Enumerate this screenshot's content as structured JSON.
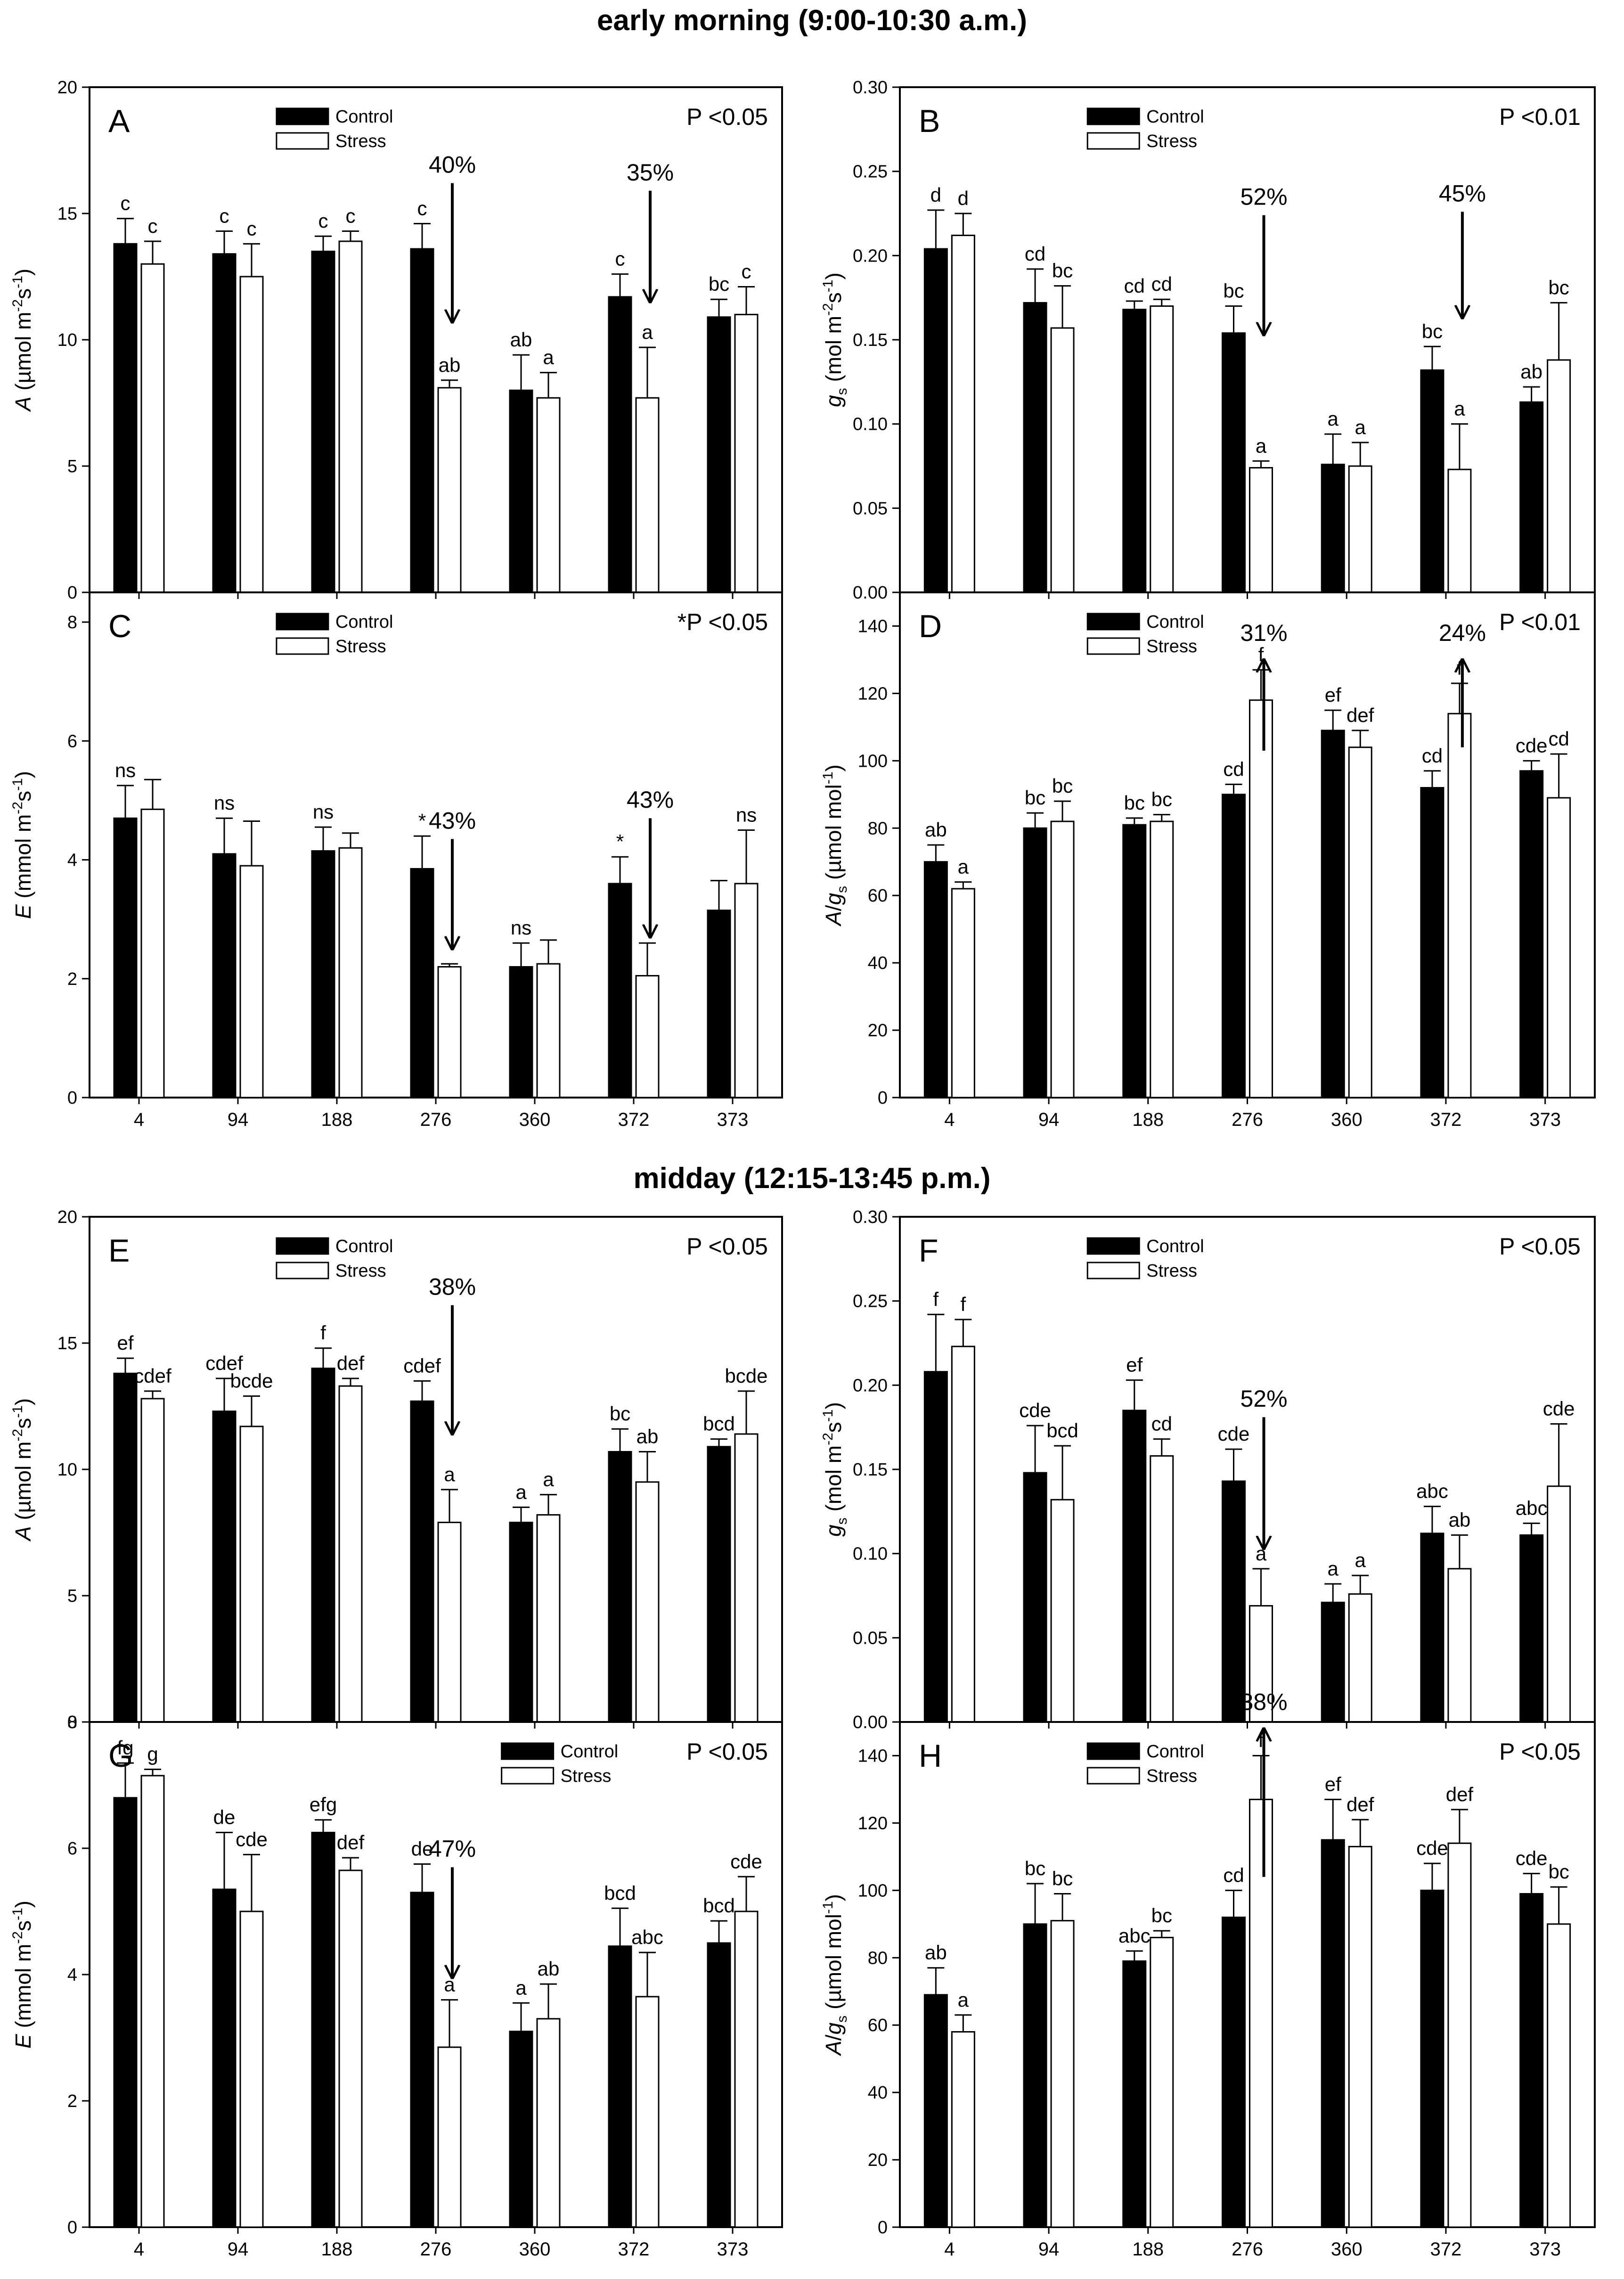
{
  "sections": {
    "morning": "early morning (9:00-10:30 a.m.)",
    "midday": "midday (12:15-13:45 p.m.)"
  },
  "colors": {
    "control": "#000000",
    "stress": "#ffffff",
    "axis": "#000000"
  },
  "chart_data": [
    {
      "id": "A",
      "type": "bar",
      "panel_letter": "A",
      "p_value": "P <0.05",
      "ylabel": "A (µmol m-2s-1)",
      "ylabel_parts": [
        "A",
        " (",
        "µ",
        "mol m",
        "-2",
        "s",
        "-1",
        ")"
      ],
      "ylim": [
        0,
        20
      ],
      "yticks": [
        0,
        5,
        10,
        15,
        20
      ],
      "categories": [
        "4",
        "94",
        "188",
        "276",
        "360",
        "372",
        "373"
      ],
      "show_xticklabels": false,
      "legend": {
        "position": "top-left",
        "entries": [
          "Control",
          "Stress"
        ]
      },
      "series": [
        {
          "name": "Control",
          "values": [
            13.8,
            13.4,
            13.5,
            13.6,
            8.0,
            11.7,
            10.9
          ],
          "errors": [
            1.0,
            0.9,
            0.6,
            1.0,
            1.4,
            0.9,
            0.7
          ],
          "labels": [
            "c",
            "c",
            "c",
            "c",
            "ab",
            "c",
            "bc"
          ]
        },
        {
          "name": "Stress",
          "values": [
            13.0,
            12.5,
            13.9,
            8.1,
            7.7,
            7.7,
            11.0
          ],
          "errors": [
            0.9,
            1.3,
            0.4,
            0.3,
            1.0,
            2.0,
            1.1
          ],
          "labels": [
            "c",
            "c",
            "c",
            "ab",
            "a",
            "a",
            "c"
          ]
        }
      ],
      "arrows": [
        {
          "category": "276",
          "label": "40%",
          "from": 16.2,
          "to": 10.7
        },
        {
          "category": "372",
          "label": "35%",
          "from": 15.9,
          "to": 11.5
        }
      ]
    },
    {
      "id": "B",
      "type": "bar",
      "panel_letter": "B",
      "p_value": "P <0.01",
      "ylabel": "gs (mol m-2s-1)",
      "ylabel_parts": [
        "g",
        "s",
        " (mol m",
        "-2",
        "s",
        "-1",
        ")"
      ],
      "ylim": [
        0,
        0.3
      ],
      "yticks": [
        "0.00",
        "0.05",
        "0.10",
        "0.15",
        "0.20",
        "0.25",
        "0.30"
      ],
      "categories": [
        "4",
        "94",
        "188",
        "276",
        "360",
        "372",
        "373"
      ],
      "show_xticklabels": false,
      "legend": {
        "position": "top-left",
        "entries": [
          "Control",
          "Stress"
        ]
      },
      "series": [
        {
          "name": "Control",
          "values": [
            0.204,
            0.172,
            0.168,
            0.154,
            0.076,
            0.132,
            0.113
          ],
          "errors": [
            0.023,
            0.02,
            0.005,
            0.016,
            0.018,
            0.014,
            0.009
          ],
          "labels": [
            "d",
            "cd",
            "cd",
            "bc",
            "a",
            "bc",
            "ab"
          ]
        },
        {
          "name": "Stress",
          "values": [
            0.212,
            0.157,
            0.17,
            0.074,
            0.075,
            0.073,
            0.138
          ],
          "errors": [
            0.013,
            0.025,
            0.004,
            0.004,
            0.014,
            0.027,
            0.034
          ],
          "labels": [
            "d",
            "bc",
            "cd",
            "a",
            "a",
            "a",
            "bc"
          ]
        }
      ],
      "arrows": [
        {
          "category": "276",
          "label": "52%",
          "from": 0.224,
          "to": 0.153
        },
        {
          "category": "372",
          "label": "45%",
          "from": 0.226,
          "to": 0.163
        }
      ]
    },
    {
      "id": "C",
      "type": "bar",
      "panel_letter": "C",
      "p_value": "*P <0.05",
      "ylabel": "E (mmol m-2s-1)",
      "ylabel_parts": [
        "E",
        " (mmol m",
        "-2",
        "s",
        "-1",
        ")"
      ],
      "ylim": [
        0,
        8.5
      ],
      "yticks": [
        0,
        2,
        4,
        6,
        8
      ],
      "categories": [
        "4",
        "94",
        "188",
        "276",
        "360",
        "372",
        "373"
      ],
      "show_xticklabels": true,
      "legend": {
        "position": "top-left",
        "entries": [
          "Control",
          "Stress"
        ]
      },
      "series": [
        {
          "name": "Control",
          "values": [
            4.7,
            4.1,
            4.15,
            3.85,
            2.2,
            3.6,
            3.15
          ],
          "errors": [
            0.55,
            0.6,
            0.4,
            0.55,
            0.4,
            0.45,
            0.5
          ],
          "labels": [
            "ns",
            "ns",
            "ns",
            "*",
            "ns",
            "*",
            ""
          ]
        },
        {
          "name": "Stress",
          "values": [
            4.85,
            3.9,
            4.2,
            2.2,
            2.25,
            2.05,
            3.6
          ],
          "errors": [
            0.5,
            0.75,
            0.25,
            0.05,
            0.4,
            0.55,
            0.9
          ],
          "labels": [
            "",
            "",
            "",
            "",
            "",
            "",
            "ns"
          ]
        }
      ],
      "arrows": [
        {
          "category": "276",
          "label": "43%",
          "from": 4.35,
          "to": 2.5
        },
        {
          "category": "372",
          "label": "43%",
          "from": 4.7,
          "to": 2.7
        }
      ]
    },
    {
      "id": "D",
      "type": "bar",
      "panel_letter": "D",
      "p_value": "P <0.01",
      "ylabel": "A/gs (µmol mol-1)",
      "ylabel_parts": [
        "A",
        "/",
        "g",
        "s",
        " (",
        "µ",
        "mol mol",
        "-1",
        ")"
      ],
      "ylim": [
        0,
        150
      ],
      "yticks": [
        0,
        20,
        40,
        60,
        80,
        100,
        120,
        140
      ],
      "categories": [
        "4",
        "94",
        "188",
        "276",
        "360",
        "372",
        "373"
      ],
      "show_xticklabels": true,
      "legend": {
        "position": "top-left",
        "entries": [
          "Control",
          "Stress"
        ]
      },
      "series": [
        {
          "name": "Control",
          "values": [
            70,
            80,
            81,
            90,
            109,
            92,
            97
          ],
          "errors": [
            5,
            4.5,
            2,
            3,
            6,
            5,
            3
          ],
          "labels": [
            "ab",
            "bc",
            "bc",
            "cd",
            "ef",
            "cd",
            "cde"
          ]
        },
        {
          "name": "Stress",
          "values": [
            62,
            82,
            82,
            118,
            104,
            114,
            89
          ],
          "errors": [
            2,
            6,
            2,
            9,
            5,
            9,
            13
          ],
          "labels": [
            "a",
            "bc",
            "bc",
            "f",
            "def",
            "f",
            "cd"
          ]
        }
      ],
      "arrows": [
        {
          "category": "276",
          "label": "31%",
          "from": 103,
          "to": 130
        },
        {
          "category": "372",
          "label": "24%",
          "from": 104,
          "to": 130
        }
      ]
    },
    {
      "id": "E",
      "type": "bar",
      "panel_letter": "E",
      "p_value": "P <0.05",
      "ylabel": "A (µmol m-2s-1)",
      "ylabel_parts": [
        "A",
        " (",
        "µ",
        "mol m",
        "-2",
        "s",
        "-1",
        ")"
      ],
      "ylim": [
        0,
        20
      ],
      "yticks": [
        0,
        5,
        10,
        15,
        20
      ],
      "categories": [
        "4",
        "94",
        "188",
        "276",
        "360",
        "372",
        "373"
      ],
      "show_xticklabels": false,
      "legend": {
        "position": "top-left",
        "entries": [
          "Control",
          "Stress"
        ]
      },
      "series": [
        {
          "name": "Control",
          "values": [
            13.8,
            12.3,
            14.0,
            12.7,
            7.9,
            10.7,
            10.9
          ],
          "errors": [
            0.6,
            1.3,
            0.8,
            0.8,
            0.6,
            0.9,
            0.3
          ],
          "labels": [
            "ef",
            "cdef",
            "f",
            "cdef",
            "a",
            "bc",
            "bcd"
          ]
        },
        {
          "name": "Stress",
          "values": [
            12.8,
            11.7,
            13.3,
            7.9,
            8.2,
            9.5,
            11.4
          ],
          "errors": [
            0.3,
            1.2,
            0.3,
            1.3,
            0.8,
            1.2,
            1.7
          ],
          "labels": [
            "cdef",
            "bcde",
            "def",
            "a",
            "a",
            "ab",
            "bcde"
          ]
        }
      ],
      "arrows": [
        {
          "category": "276",
          "label": "38%",
          "from": 16.5,
          "to": 11.4
        }
      ]
    },
    {
      "id": "F",
      "type": "bar",
      "panel_letter": "F",
      "p_value": "P <0.05",
      "ylabel": "gs (mol m-2s-1)",
      "ylabel_parts": [
        "g",
        "s",
        " (mol m",
        "-2",
        "s",
        "-1",
        ")"
      ],
      "ylim": [
        0,
        0.3
      ],
      "yticks": [
        "0.00",
        "0.05",
        "0.10",
        "0.15",
        "0.20",
        "0.25",
        "0.30"
      ],
      "categories": [
        "4",
        "94",
        "188",
        "276",
        "360",
        "372",
        "373"
      ],
      "show_xticklabels": false,
      "legend": {
        "position": "top-left",
        "entries": [
          "Control",
          "Stress"
        ]
      },
      "series": [
        {
          "name": "Control",
          "values": [
            0.208,
            0.148,
            0.185,
            0.143,
            0.071,
            0.112,
            0.111
          ],
          "errors": [
            0.034,
            0.028,
            0.018,
            0.019,
            0.011,
            0.016,
            0.007
          ],
          "labels": [
            "f",
            "cde",
            "ef",
            "cde",
            "a",
            "abc",
            "abc"
          ]
        },
        {
          "name": "Stress",
          "values": [
            0.223,
            0.132,
            0.158,
            0.069,
            0.076,
            0.091,
            0.14
          ],
          "errors": [
            0.016,
            0.032,
            0.01,
            0.022,
            0.011,
            0.02,
            0.037
          ],
          "labels": [
            "f",
            "bcd",
            "cd",
            "a",
            "a",
            "ab",
            "cde"
          ]
        }
      ],
      "arrows": [
        {
          "category": "276",
          "label": "52%",
          "from": 0.181,
          "to": 0.103
        }
      ]
    },
    {
      "id": "G",
      "type": "bar",
      "panel_letter": "G",
      "p_value": "P <0.05",
      "ylabel": "E (mmol m-2s-1)",
      "ylabel_parts": [
        "E",
        " (mmol m",
        "-2",
        "s",
        "-1",
        ")"
      ],
      "ylim": [
        0,
        8
      ],
      "yticks": [
        0,
        2,
        4,
        6,
        8
      ],
      "categories": [
        "4",
        "94",
        "188",
        "276",
        "360",
        "372",
        "373"
      ],
      "show_xticklabels": true,
      "legend": {
        "position": "top-right",
        "entries": [
          "Control",
          "Stress"
        ]
      },
      "series": [
        {
          "name": "Control",
          "values": [
            6.8,
            5.35,
            6.25,
            5.3,
            3.1,
            4.45,
            4.5
          ],
          "errors": [
            0.55,
            0.9,
            0.2,
            0.45,
            0.45,
            0.6,
            0.35
          ],
          "labels": [
            "fg",
            "de",
            "efg",
            "de",
            "a",
            "bcd",
            "bcd"
          ]
        },
        {
          "name": "Stress",
          "values": [
            7.15,
            5.0,
            5.65,
            2.85,
            3.3,
            3.65,
            5.0
          ],
          "errors": [
            0.1,
            0.9,
            0.2,
            0.75,
            0.55,
            0.7,
            0.55
          ],
          "labels": [
            "g",
            "cde",
            "def",
            "a",
            "ab",
            "abc",
            "cde"
          ]
        }
      ],
      "arrows": [
        {
          "category": "276",
          "label": "47%",
          "from": 5.7,
          "to": 3.95
        }
      ]
    },
    {
      "id": "H",
      "type": "bar",
      "panel_letter": "H",
      "p_value": "P <0.05",
      "ylabel": "A/gs (µmol mol-1)",
      "ylabel_parts": [
        "A",
        "/",
        "g",
        "s",
        " (",
        "µ",
        "mol mol",
        "-1",
        ")"
      ],
      "ylim": [
        0,
        150
      ],
      "yticks": [
        0,
        20,
        40,
        60,
        80,
        100,
        120,
        140
      ],
      "categories": [
        "4",
        "94",
        "188",
        "276",
        "360",
        "372",
        "373"
      ],
      "show_xticklabels": true,
      "legend": {
        "position": "top-left",
        "entries": [
          "Control",
          "Stress"
        ]
      },
      "series": [
        {
          "name": "Control",
          "values": [
            69,
            90,
            79,
            92,
            115,
            100,
            99
          ],
          "errors": [
            8,
            12,
            3,
            8,
            12,
            8,
            6
          ],
          "labels": [
            "ab",
            "bc",
            "abc",
            "cd",
            "ef",
            "cde",
            "cde"
          ]
        },
        {
          "name": "Stress",
          "values": [
            58,
            91,
            86,
            127,
            113,
            114,
            90
          ],
          "errors": [
            5,
            8,
            2,
            13,
            8,
            10,
            11
          ],
          "labels": [
            "a",
            "bc",
            "bc",
            "f",
            "def",
            "def",
            "bc"
          ]
        }
      ],
      "arrows": [
        {
          "category": "276",
          "label": "38%",
          "from": 104,
          "to": 148
        }
      ]
    }
  ]
}
